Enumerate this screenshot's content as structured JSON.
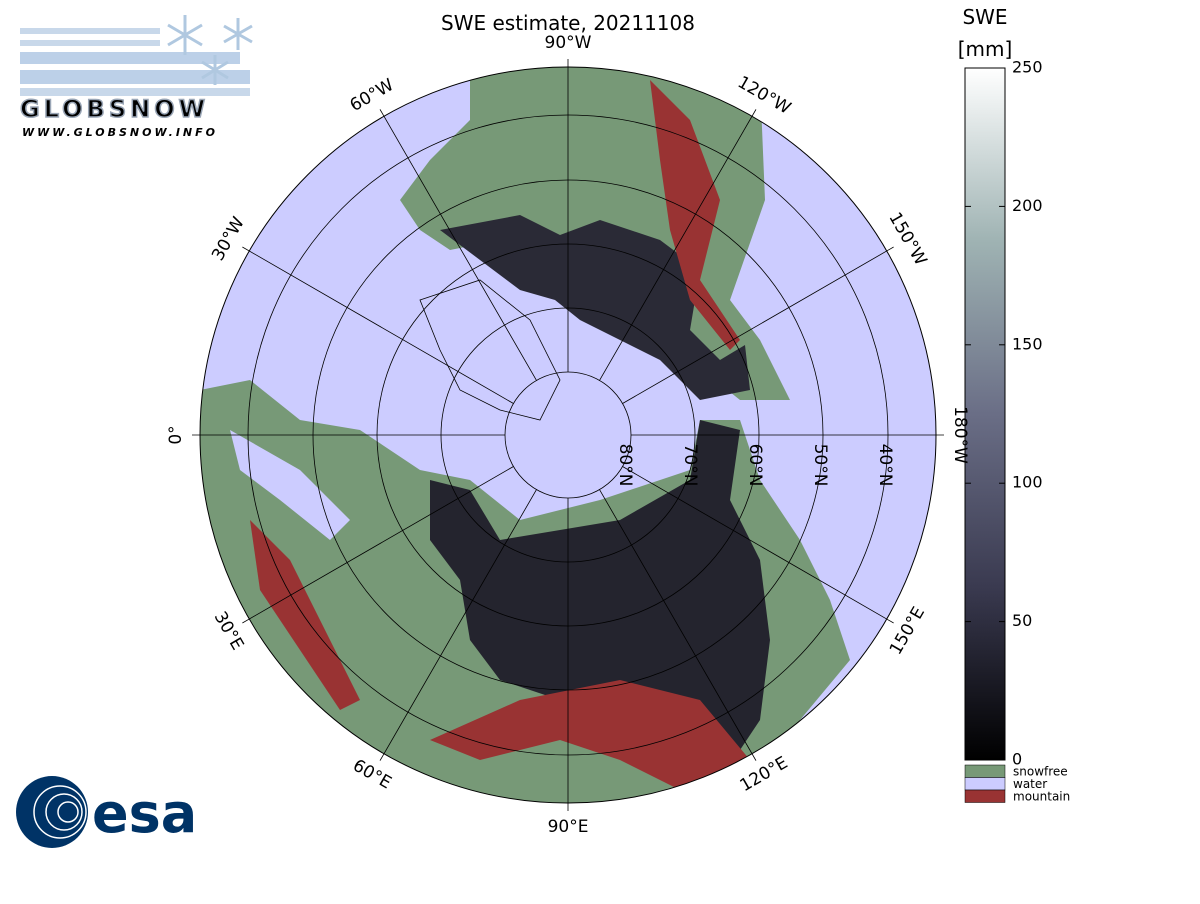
{
  "title": "SWE estimate, 20211108",
  "colorbar": {
    "title": "SWE",
    "unit": "[mm]",
    "range": [
      0,
      250
    ],
    "ticks": [
      0,
      50,
      100,
      150,
      200,
      250
    ]
  },
  "legend": [
    "snowfree",
    "water",
    "mountain"
  ],
  "longitude_labels": [
    "0°",
    "30°W",
    "60°W",
    "90°W",
    "120°W",
    "150°W",
    "180°W",
    "150°E",
    "120°E",
    "90°E",
    "60°E",
    "30°E"
  ],
  "latitude_labels": [
    "80°N",
    "70°N",
    "60°N",
    "50°N",
    "40°N"
  ],
  "logo": {
    "globsnow": "GLOBSNOW",
    "url": "WWW.GLOBSNOW.INFO",
    "esa": "esa"
  }
}
